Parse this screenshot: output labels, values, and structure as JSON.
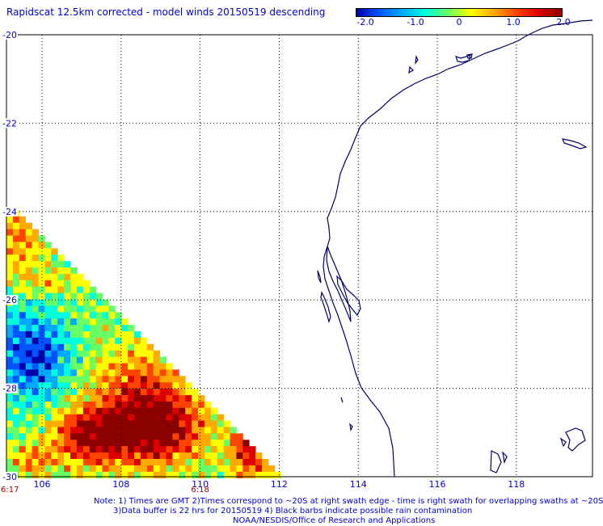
{
  "title": "Rapidscat 12.5km corrected - model winds 20150519 descending",
  "colorbar": {
    "tick_labels": [
      "-2.0",
      "-1.0",
      "0",
      "1.0",
      "2.0"
    ],
    "range": [
      -2.0,
      2.0
    ],
    "palette": [
      "#0000aa",
      "#0055ff",
      "#00aaff",
      "#00ffdd",
      "#66ff66",
      "#ffff00",
      "#ffaa00",
      "#ff4400",
      "#dd0000",
      "#8b0000"
    ]
  },
  "map": {
    "lon_labels": [
      "106",
      "108",
      "110",
      "112",
      "114",
      "116",
      "118"
    ],
    "lat_labels": [
      "-20",
      "-22",
      "-24",
      "-26",
      "-28",
      "-30"
    ],
    "time_labels": [
      "6:17",
      "6:18"
    ],
    "gridline_color": "#000000",
    "coastline_color": "#000066"
  },
  "notes": {
    "line1": "Note: 1) Times are GMT 2)Times correspond to ~20S at right swath edge - time is right swath for overlapping swaths at ~20S",
    "line2": "3)Data buffer is 22 hrs for 20150519 4) Black barbs indicate possible rain contamination",
    "line3": "NOAA/NESDIS/Office of Research and Applications"
  }
}
